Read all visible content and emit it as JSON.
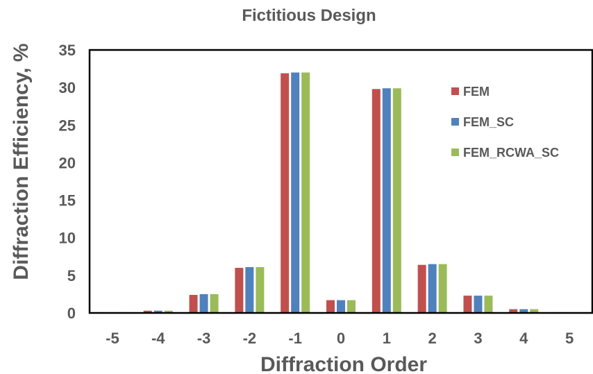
{
  "chart_data": {
    "type": "bar",
    "title": "Fictitious Design",
    "xlabel": "Diffraction Order",
    "ylabel": "Diffraction Efficiency, %",
    "categories": [
      "-5",
      "-4",
      "-3",
      "-2",
      "-1",
      "0",
      "1",
      "2",
      "3",
      "4",
      "5"
    ],
    "ylim": [
      0,
      35
    ],
    "yticks": [
      "0",
      "5",
      "10",
      "15",
      "20",
      "25",
      "30",
      "35"
    ],
    "grid": false,
    "legend_position": "top-right",
    "series": [
      {
        "name": "FEM",
        "color": "#C0504D",
        "values": [
          0.1,
          0.3,
          2.4,
          6.0,
          31.9,
          1.7,
          29.8,
          6.4,
          2.3,
          0.5,
          0.1
        ]
      },
      {
        "name": "FEM_SC",
        "color": "#4F81BD",
        "values": [
          0.1,
          0.3,
          2.5,
          6.1,
          32.0,
          1.7,
          29.9,
          6.5,
          2.3,
          0.5,
          0.1
        ]
      },
      {
        "name": "FEM_RCWA_SC",
        "color": "#9BBB59",
        "values": [
          0.1,
          0.3,
          2.5,
          6.1,
          32.0,
          1.7,
          29.9,
          6.5,
          2.3,
          0.5,
          0.1
        ]
      }
    ]
  }
}
